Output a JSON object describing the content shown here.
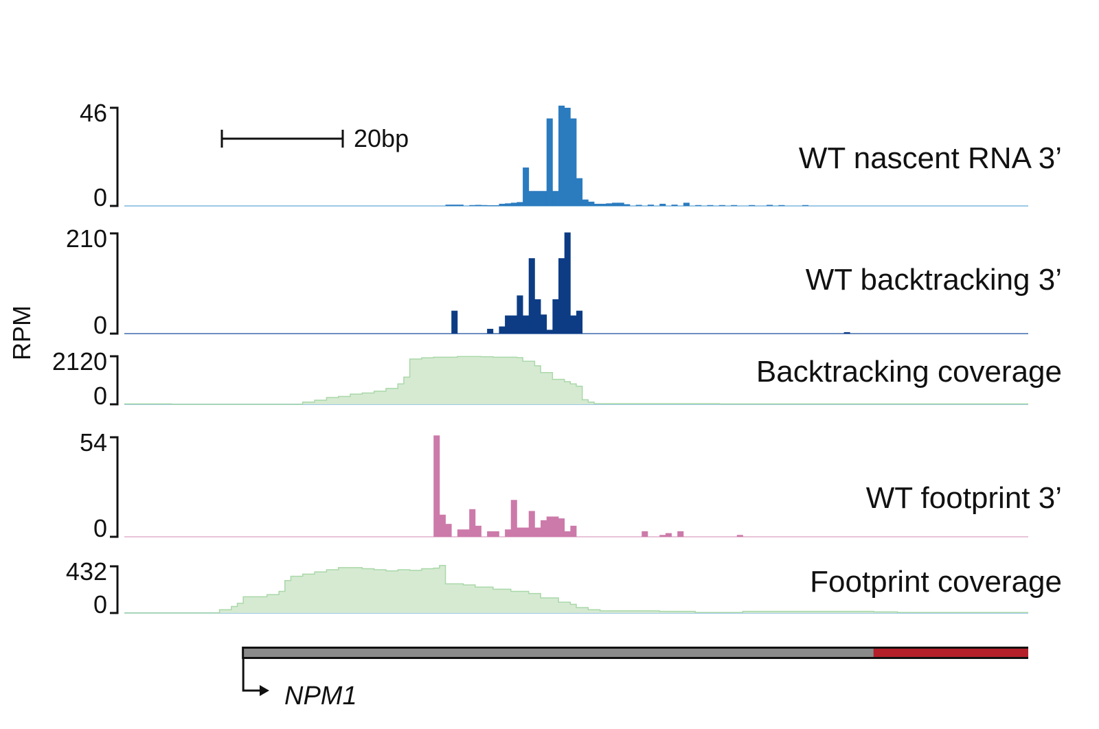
{
  "chart_data": {
    "type": "bar",
    "ylabel": "RPM",
    "scale_bar_label": "20bp",
    "x_range": [
      0,
      152
    ],
    "gene": {
      "name": "NPM1",
      "colors": {
        "body": "#8a8a8a",
        "end": "#b3202a",
        "outline": "#111111"
      },
      "start": 20,
      "end_segment_start": 126,
      "end": 152
    },
    "tracks": [
      {
        "name": "WT nascent RNA 3’",
        "ymin_label": "0",
        "ymax_label": "46",
        "ymax": 46,
        "kind": "bar",
        "color": "#2b7bbf",
        "baseline_color": "#9cc8e6",
        "values": [
          [
            54,
            0.6
          ],
          [
            55,
            0.6
          ],
          [
            56,
            0.6
          ],
          [
            58,
            0.4
          ],
          [
            59,
            0.5
          ],
          [
            60,
            0.4
          ],
          [
            61,
            0.3
          ],
          [
            62,
            0.3
          ],
          [
            63,
            1
          ],
          [
            64,
            1.2
          ],
          [
            65,
            1.5
          ],
          [
            66,
            1.8
          ],
          [
            67,
            18
          ],
          [
            68,
            7
          ],
          [
            69,
            7
          ],
          [
            70,
            7
          ],
          [
            71,
            41
          ],
          [
            72,
            7
          ],
          [
            73,
            47
          ],
          [
            74,
            46
          ],
          [
            75,
            41
          ],
          [
            76,
            13
          ],
          [
            77,
            3
          ],
          [
            78,
            2
          ],
          [
            79,
            1
          ],
          [
            80,
            1
          ],
          [
            81,
            1.2
          ],
          [
            82,
            1.5
          ],
          [
            83,
            1.5
          ],
          [
            84,
            0.8
          ],
          [
            86,
            0.5
          ],
          [
            88,
            0.6
          ],
          [
            90,
            1
          ],
          [
            92,
            0.6
          ],
          [
            94,
            1.5
          ],
          [
            96,
            0.4
          ],
          [
            98,
            0.4
          ],
          [
            100,
            0.4
          ],
          [
            102,
            0.4
          ],
          [
            105,
            0.4
          ],
          [
            108,
            0.5
          ],
          [
            110,
            0.4
          ],
          [
            114,
            0.4
          ]
        ]
      },
      {
        "name": "WT backtracking 3’",
        "ymin_label": "0",
        "ymax_label": "210",
        "ymax": 210,
        "kind": "bar",
        "color": "#0d3c84",
        "baseline_color": "#6f8fbf",
        "values": [
          [
            55,
            48
          ],
          [
            61,
            10
          ],
          [
            63,
            15
          ],
          [
            64,
            38
          ],
          [
            65,
            38
          ],
          [
            66,
            80
          ],
          [
            67,
            38
          ],
          [
            68,
            158
          ],
          [
            69,
            72
          ],
          [
            70,
            40
          ],
          [
            71,
            8
          ],
          [
            72,
            72
          ],
          [
            73,
            158
          ],
          [
            74,
            212
          ],
          [
            75,
            38
          ],
          [
            76,
            48
          ],
          [
            121,
            3
          ]
        ]
      },
      {
        "name": "Backtracking coverage",
        "ymin_label": "0",
        "ymax_label": "2120",
        "ymax": 2120,
        "kind": "area",
        "color": "#d6ead2",
        "line_color": "#a9d8a8",
        "baseline_color": "#9cc8e6",
        "values": [
          [
            0,
            20
          ],
          [
            7,
            20
          ],
          [
            8,
            0
          ],
          [
            30,
            0
          ],
          [
            30,
            100
          ],
          [
            32,
            180
          ],
          [
            34,
            300
          ],
          [
            36,
            350
          ],
          [
            38,
            450
          ],
          [
            40,
            500
          ],
          [
            42,
            580
          ],
          [
            44,
            700
          ],
          [
            46,
            900
          ],
          [
            47,
            1200
          ],
          [
            48,
            2000
          ],
          [
            50,
            2050
          ],
          [
            52,
            2080
          ],
          [
            56,
            2110
          ],
          [
            60,
            2100
          ],
          [
            62,
            2080
          ],
          [
            66,
            2060
          ],
          [
            67,
            1900
          ],
          [
            69,
            1700
          ],
          [
            70,
            1400
          ],
          [
            72,
            1100
          ],
          [
            74,
            1000
          ],
          [
            75,
            900
          ],
          [
            76,
            800
          ],
          [
            77,
            200
          ],
          [
            78,
            100
          ],
          [
            79,
            30
          ],
          [
            100,
            20
          ],
          [
            152,
            20
          ]
        ]
      },
      {
        "name": "WT footprint 3’",
        "ymin_label": "0",
        "ymax_label": "54",
        "ymax": 54,
        "kind": "bar",
        "color": "#cc7aaa",
        "baseline_color": "#e8c3d8",
        "values": [
          [
            52,
            55
          ],
          [
            53,
            12
          ],
          [
            54,
            7
          ],
          [
            56,
            4
          ],
          [
            57,
            4
          ],
          [
            58,
            15
          ],
          [
            59,
            6
          ],
          [
            61,
            3
          ],
          [
            62,
            3
          ],
          [
            64,
            4
          ],
          [
            65,
            20
          ],
          [
            66,
            5
          ],
          [
            67,
            5
          ],
          [
            68,
            14
          ],
          [
            69,
            5
          ],
          [
            70,
            9
          ],
          [
            71,
            11
          ],
          [
            72,
            11
          ],
          [
            73,
            10
          ],
          [
            74,
            3
          ],
          [
            75,
            6
          ],
          [
            87,
            3
          ],
          [
            90,
            1
          ],
          [
            91,
            2
          ],
          [
            93,
            3
          ],
          [
            103,
            1
          ]
        ]
      },
      {
        "name": "Footprint coverage",
        "ymin_label": "0",
        "ymax_label": "432",
        "ymax": 432,
        "kind": "area",
        "color": "#d6ead2",
        "line_color": "#a9d8a8",
        "baseline_color": "#9cc8e6",
        "values": [
          [
            0,
            0
          ],
          [
            15,
            0
          ],
          [
            16,
            30
          ],
          [
            18,
            60
          ],
          [
            19,
            90
          ],
          [
            20,
            150
          ],
          [
            22,
            150
          ],
          [
            24,
            170
          ],
          [
            26,
            200
          ],
          [
            27,
            300
          ],
          [
            28,
            340
          ],
          [
            30,
            360
          ],
          [
            32,
            380
          ],
          [
            34,
            400
          ],
          [
            36,
            420
          ],
          [
            38,
            420
          ],
          [
            40,
            410
          ],
          [
            42,
            400
          ],
          [
            44,
            390
          ],
          [
            46,
            400
          ],
          [
            48,
            395
          ],
          [
            50,
            410
          ],
          [
            52,
            415
          ],
          [
            53,
            440
          ],
          [
            54,
            270
          ],
          [
            57,
            260
          ],
          [
            59,
            240
          ],
          [
            62,
            220
          ],
          [
            65,
            200
          ],
          [
            68,
            180
          ],
          [
            70,
            140
          ],
          [
            73,
            100
          ],
          [
            75,
            80
          ],
          [
            76,
            50
          ],
          [
            78,
            30
          ],
          [
            80,
            20
          ],
          [
            90,
            15
          ],
          [
            96,
            5
          ],
          [
            104,
            15
          ],
          [
            126,
            10
          ],
          [
            130,
            5
          ],
          [
            152,
            5
          ]
        ]
      }
    ]
  }
}
